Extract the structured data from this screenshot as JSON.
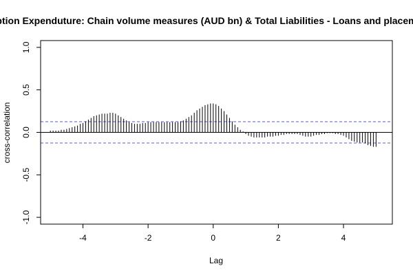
{
  "chart_data": {
    "type": "bar",
    "title": "umption Expenduture: Chain volume measures (AUD bn) & Total Liabilities - Loans and placement",
    "xlabel": "Lag",
    "ylabel": "cross-correlation",
    "xlim": [
      -5.3,
      5.5
    ],
    "ylim": [
      -1.08,
      1.08
    ],
    "xticks": [
      -4,
      -2,
      0,
      2,
      4
    ],
    "yticks": [
      -1.0,
      -0.5,
      0.0,
      0.5,
      1.0
    ],
    "xtick_labels": [
      "-4",
      "-2",
      "0",
      "2",
      "4"
    ],
    "ytick_labels": [
      "-1.0",
      "-0.5",
      "0.0",
      "0.5",
      "1.0"
    ],
    "confidence_limit": 0.125,
    "colors": {
      "bars": "#000000",
      "ci": "#5555dd",
      "zero": "#000000"
    },
    "series": [
      {
        "lags": [
          -5.0,
          -4.917,
          -4.833,
          -4.75,
          -4.667,
          -4.583,
          -4.5,
          -4.417,
          -4.333,
          -4.25,
          -4.167,
          -4.083,
          -4.0,
          -3.917,
          -3.833,
          -3.75,
          -3.667,
          -3.583,
          -3.5,
          -3.417,
          -3.333,
          -3.25,
          -3.167,
          -3.083,
          -3.0,
          -2.917,
          -2.833,
          -2.75,
          -2.667,
          -2.583,
          -2.5,
          -2.417,
          -2.333,
          -2.25,
          -2.167,
          -2.083,
          -2.0,
          -1.917,
          -1.833,
          -1.75,
          -1.667,
          -1.583,
          -1.5,
          -1.417,
          -1.333,
          -1.25,
          -1.167,
          -1.083,
          -1.0,
          -0.917,
          -0.833,
          -0.75,
          -0.667,
          -0.583,
          -0.5,
          -0.417,
          -0.333,
          -0.25,
          -0.167,
          -0.083,
          0.0,
          0.083,
          0.167,
          0.25,
          0.333,
          0.417,
          0.5,
          0.583,
          0.667,
          0.75,
          0.833,
          0.917,
          1.0,
          1.083,
          1.167,
          1.25,
          1.333,
          1.417,
          1.5,
          1.583,
          1.667,
          1.75,
          1.833,
          1.917,
          2.0,
          2.083,
          2.167,
          2.25,
          2.333,
          2.417,
          2.5,
          2.583,
          2.667,
          2.75,
          2.833,
          2.917,
          3.0,
          3.083,
          3.167,
          3.25,
          3.333,
          3.417,
          3.5,
          3.583,
          3.667,
          3.75,
          3.833,
          3.917,
          4.0,
          4.083,
          4.167,
          4.25,
          4.333,
          4.417,
          4.5,
          4.583,
          4.667,
          4.75,
          4.833,
          4.917,
          5.0
        ],
        "values": [
          0.02,
          0.02,
          0.02,
          0.02,
          0.03,
          0.03,
          0.04,
          0.05,
          0.06,
          0.07,
          0.08,
          0.1,
          0.11,
          0.13,
          0.15,
          0.17,
          0.19,
          0.2,
          0.21,
          0.22,
          0.22,
          0.22,
          0.23,
          0.23,
          0.22,
          0.2,
          0.18,
          0.16,
          0.14,
          0.12,
          0.11,
          0.1,
          0.1,
          0.1,
          0.11,
          0.11,
          0.12,
          0.12,
          0.12,
          0.12,
          0.12,
          0.12,
          0.12,
          0.12,
          0.12,
          0.12,
          0.12,
          0.12,
          0.13,
          0.14,
          0.16,
          0.18,
          0.2,
          0.23,
          0.26,
          0.28,
          0.3,
          0.32,
          0.33,
          0.34,
          0.34,
          0.33,
          0.31,
          0.28,
          0.25,
          0.21,
          0.17,
          0.13,
          0.09,
          0.06,
          0.03,
          0.01,
          -0.02,
          -0.04,
          -0.05,
          -0.06,
          -0.06,
          -0.06,
          -0.06,
          -0.06,
          -0.05,
          -0.05,
          -0.05,
          -0.04,
          -0.04,
          -0.03,
          -0.03,
          -0.02,
          -0.02,
          -0.02,
          -0.02,
          -0.02,
          -0.03,
          -0.04,
          -0.05,
          -0.05,
          -0.05,
          -0.04,
          -0.03,
          -0.03,
          -0.02,
          -0.02,
          -0.01,
          -0.01,
          -0.01,
          -0.02,
          -0.02,
          -0.03,
          -0.04,
          -0.06,
          -0.08,
          -0.1,
          -0.11,
          -0.12,
          -0.12,
          -0.12,
          -0.13,
          -0.15,
          -0.16,
          -0.17,
          -0.17
        ]
      }
    ],
    "grid": false
  }
}
